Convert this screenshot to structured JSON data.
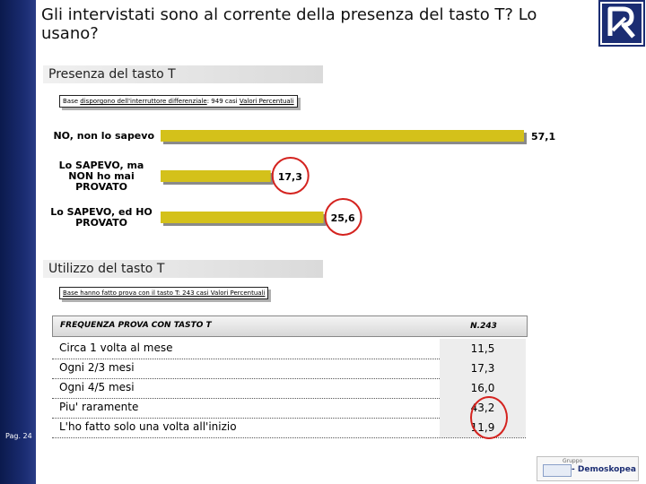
{
  "title": "Gli intervistati sono al corrente della presenza del tasto T? Lo usano?",
  "page": "Pag. 24",
  "section1": {
    "label": "Presenza del tasto T",
    "base_prefix": "Base ",
    "base_underlined": "disporgono dell'interruttore differenziale",
    "base_middle": ": 949 casi ",
    "base_values": "Valori Percentuali"
  },
  "chart_data": {
    "type": "bar",
    "orientation": "horizontal",
    "categories": [
      "NO, non lo sapevo",
      "Lo SAPEVO, ma NON ho mai PROVATO",
      "Lo SAPEVO, ed HO PROVATO"
    ],
    "category_lines": [
      [
        "NO, non lo sapevo"
      ],
      [
        "Lo SAPEVO, ma",
        "NON ho mai",
        "PROVATO"
      ],
      [
        "Lo SAPEVO, ed HO",
        "PROVATO"
      ]
    ],
    "values": [
      57.1,
      17.3,
      25.6
    ],
    "value_labels": [
      "57,1",
      "17,3",
      "25,6"
    ],
    "bar_color": "#d4c11a",
    "highlighted": [
      1,
      2
    ],
    "highlight_color": "#d4231f"
  },
  "section2": {
    "label": "Utilizzo del tasto T",
    "base_text": "Base hanno fatto prova con il tasto T: 243 casi ",
    "base_values": "Valori Percentuali"
  },
  "table": {
    "header_label": "FREQUENZA PROVA CON TASTO T",
    "header_value": "N.243",
    "rows": [
      {
        "label": "Circa 1 volta al mese",
        "value": "11,5"
      },
      {
        "label": "Ogni 2/3 mesi",
        "value": "17,3"
      },
      {
        "label": "Ogni 4/5 mesi",
        "value": "16,0"
      },
      {
        "label": "Piu' raramente",
        "value": "43,2"
      },
      {
        "label": "L'ho fatto solo una volta all'inizio",
        "value": "11,9"
      }
    ],
    "highlighted_rows": [
      3,
      4
    ]
  },
  "footer": {
    "gruppo": "Gruppo",
    "brand": "- Demoskopea"
  }
}
